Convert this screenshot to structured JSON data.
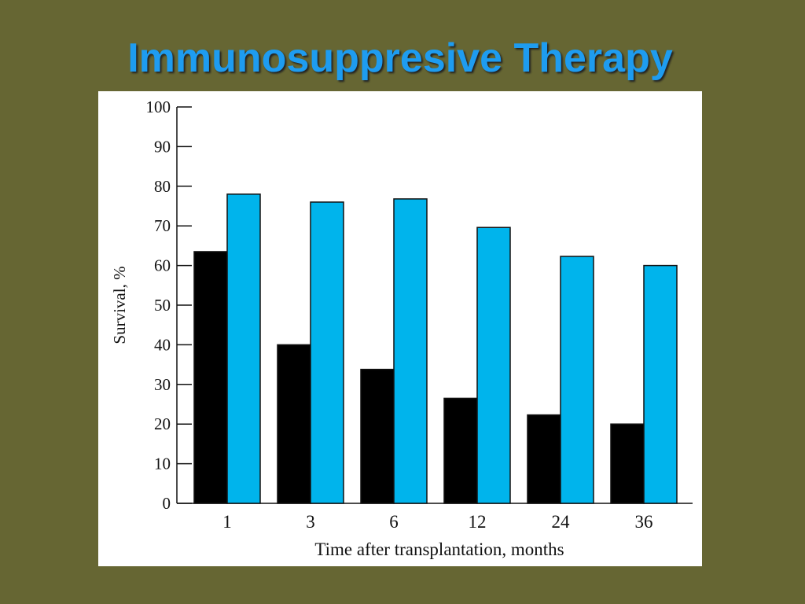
{
  "slide": {
    "title": "Immunosuppresive Therapy"
  },
  "colors": {
    "background": "#666633",
    "title": "#1e9cf0",
    "series_1": "#000000",
    "series_2": "#00b4ec"
  },
  "chart_data": {
    "type": "bar",
    "title": "",
    "xlabel": "Time after transplantation, months",
    "ylabel": "Survival, %",
    "categories": [
      "1",
      "3",
      "6",
      "12",
      "24",
      "36"
    ],
    "series": [
      {
        "color": "#000000",
        "values": [
          63.5,
          40,
          33.8,
          26.5,
          22.3,
          20
        ]
      },
      {
        "color": "#00b4ec",
        "values": [
          78,
          76,
          76.8,
          69.6,
          62.3,
          60
        ]
      }
    ],
    "ylim": [
      0,
      100
    ],
    "yticks": [
      0,
      10,
      20,
      30,
      40,
      50,
      60,
      70,
      80,
      90,
      100
    ],
    "grid": false,
    "legend": "none"
  }
}
